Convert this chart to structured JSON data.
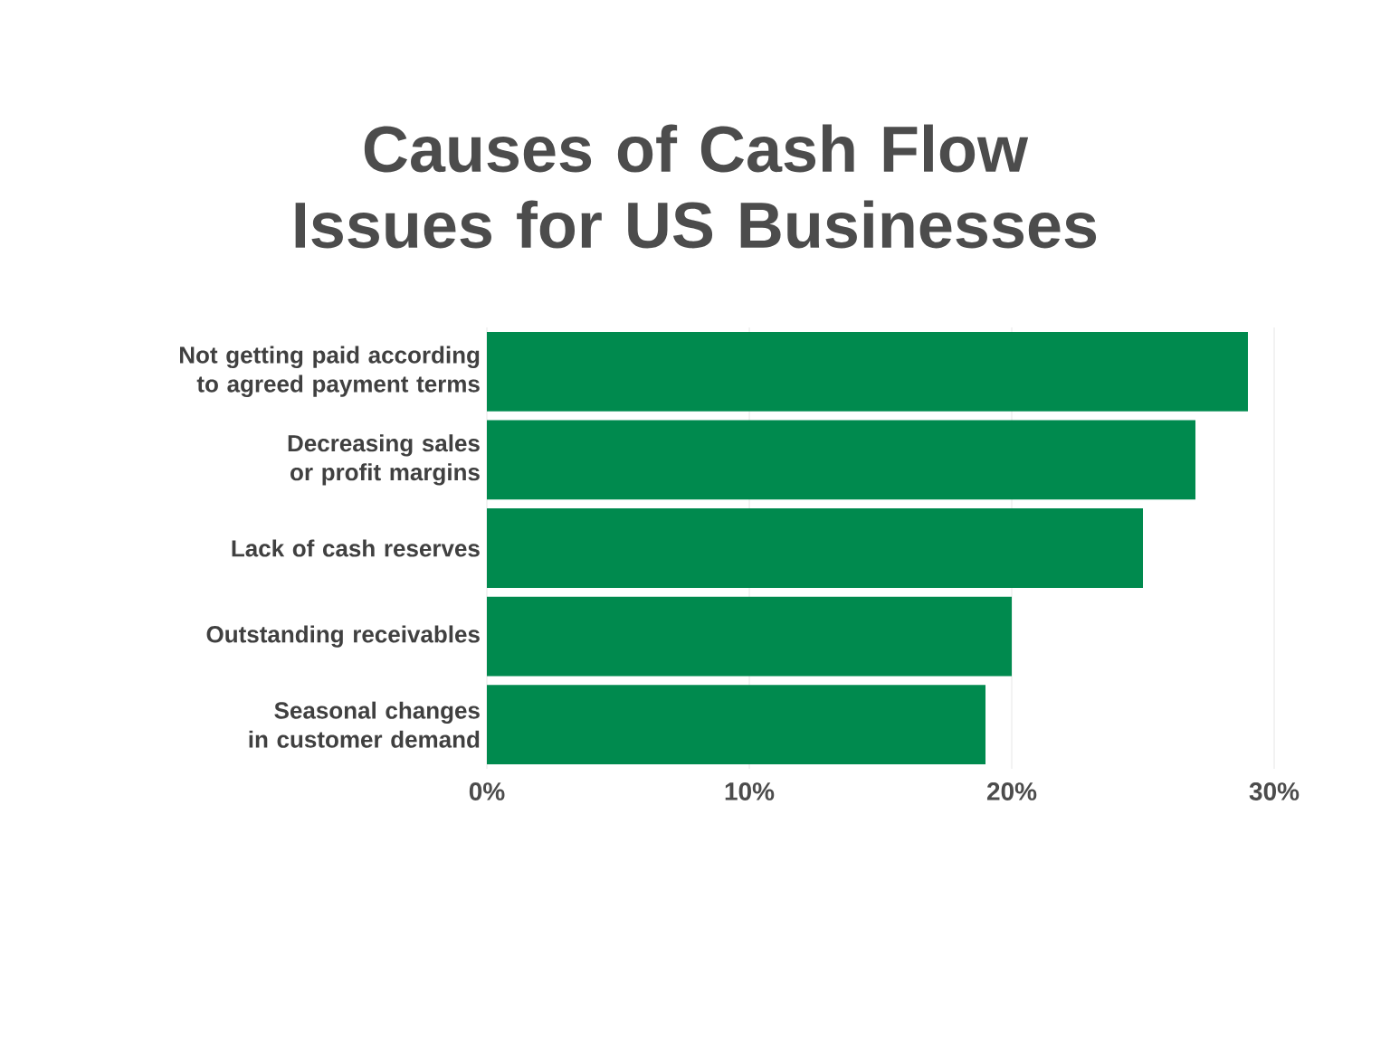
{
  "chart_data": {
    "type": "bar",
    "orientation": "horizontal",
    "title": "Causes of Cash Flow Issues for US Businesses",
    "categories": [
      "Not getting paid according to agreed payment terms",
      "Decreasing sales or profit margins",
      "Lack of cash reserves",
      "Outstanding receivables",
      "Seasonal changes in customer demand"
    ],
    "values": [
      29,
      27,
      25,
      20,
      19
    ],
    "color": "#008a4e",
    "xlim": [
      0,
      30
    ],
    "xticks": [
      {
        "value": 0,
        "label": "0%"
      },
      {
        "value": 10,
        "label": "10%"
      },
      {
        "value": 20,
        "label": "20%"
      },
      {
        "value": 30,
        "label": "30%"
      }
    ],
    "grid": "x"
  }
}
